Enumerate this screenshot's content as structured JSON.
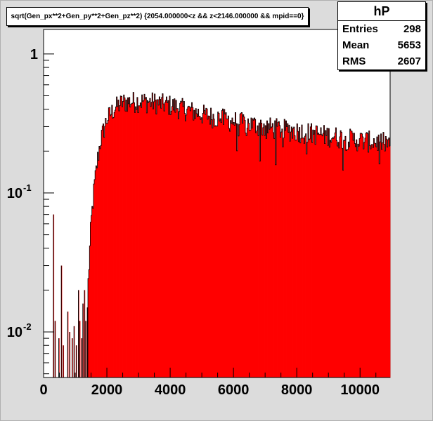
{
  "title": "sqrt(Gen_px**2+Gen_py**2+Gen_pz**2) {2054.000000<z && z<2146.000000 && mpid==0}",
  "stats": {
    "name": "hP",
    "rows": [
      {
        "label": "Entries",
        "value": "298"
      },
      {
        "label": "Mean",
        "value": "5653"
      },
      {
        "label": "RMS",
        "value": "2607"
      }
    ]
  },
  "colors": {
    "canvas": "#dcdcdc",
    "frame": "#ffffff",
    "fill": "#ff0000",
    "line": "#000000"
  },
  "chart_data": {
    "type": "bar",
    "title": "sqrt(Gen_px**2+Gen_py**2+Gen_pz**2) {2054.000000<z && z<2146.000000 && mpid==0}",
    "xlabel": "",
    "ylabel": "",
    "xlim": [
      0,
      10950
    ],
    "ylim": [
      0.0047,
      1.5
    ],
    "log_y": true,
    "x_ticks": [
      {
        "value": 0,
        "label": "0"
      },
      {
        "value": 2000,
        "label": "2000"
      },
      {
        "value": 4000,
        "label": "4000"
      },
      {
        "value": 6000,
        "label": "6000"
      },
      {
        "value": 8000,
        "label": "8000"
      },
      {
        "value": 10000,
        "label": "10000"
      }
    ],
    "y_ticks": [
      {
        "value": 1,
        "base": "1",
        "exp": ""
      },
      {
        "value": 0.1,
        "base": "10",
        "exp": "-1"
      },
      {
        "value": 0.01,
        "base": "10",
        "exp": "-2"
      }
    ],
    "bin_width": 25,
    "sparse_bins": [
      {
        "x": 310,
        "y": 0.07
      },
      {
        "x": 360,
        "y": 0.012
      },
      {
        "x": 480,
        "y": 0.009
      },
      {
        "x": 560,
        "y": 0.03
      },
      {
        "x": 620,
        "y": 0.008
      },
      {
        "x": 760,
        "y": 0.014
      },
      {
        "x": 820,
        "y": 0.01
      },
      {
        "x": 900,
        "y": 0.009
      },
      {
        "x": 960,
        "y": 0.011
      },
      {
        "x": 1030,
        "y": 0.008
      },
      {
        "x": 1100,
        "y": 0.02
      },
      {
        "x": 1140,
        "y": 0.012
      },
      {
        "x": 1200,
        "y": 0.009
      },
      {
        "x": 1240,
        "y": 0.016
      },
      {
        "x": 1290,
        "y": 0.02
      },
      {
        "x": 1330,
        "y": 0.012
      },
      {
        "x": 1380,
        "y": 0.015
      }
    ],
    "envelope": [
      {
        "x": 1400,
        "y": 0.02
      },
      {
        "x": 1500,
        "y": 0.06
      },
      {
        "x": 1600,
        "y": 0.11
      },
      {
        "x": 1700,
        "y": 0.17
      },
      {
        "x": 1800,
        "y": 0.24
      },
      {
        "x": 2000,
        "y": 0.34
      },
      {
        "x": 2250,
        "y": 0.41
      },
      {
        "x": 2500,
        "y": 0.45
      },
      {
        "x": 3000,
        "y": 0.46
      },
      {
        "x": 3500,
        "y": 0.45
      },
      {
        "x": 4000,
        "y": 0.43
      },
      {
        "x": 4500,
        "y": 0.4
      },
      {
        "x": 5000,
        "y": 0.37
      },
      {
        "x": 6000,
        "y": 0.33
      },
      {
        "x": 7000,
        "y": 0.3
      },
      {
        "x": 8000,
        "y": 0.28
      },
      {
        "x": 9000,
        "y": 0.26
      },
      {
        "x": 10000,
        "y": 0.24
      },
      {
        "x": 10950,
        "y": 0.23
      }
    ]
  }
}
